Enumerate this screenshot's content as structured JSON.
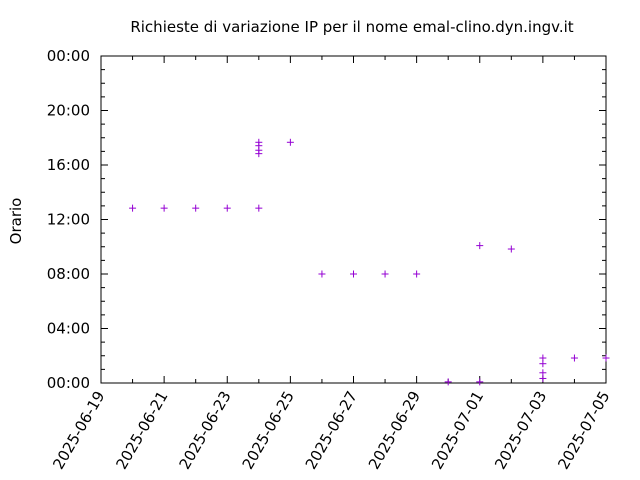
{
  "chart_data": {
    "type": "scatter",
    "title": "Richieste di variazione IP per il nome emal-clino.dyn.ingv.it",
    "xlabel": "",
    "ylabel": "Orario",
    "x_ticks": [
      "2025-06-19",
      "2025-06-21",
      "2025-06-23",
      "2025-06-25",
      "2025-06-27",
      "2025-06-29",
      "2025-07-01",
      "2025-07-03",
      "2025-07-05"
    ],
    "y_ticks": [
      "00:00",
      "04:00",
      "08:00",
      "12:00",
      "16:00",
      "20:00",
      "00:00"
    ],
    "xlim": [
      "2025-06-19",
      "2025-07-05"
    ],
    "ylim": [
      "00:00",
      "24:00"
    ],
    "grid": false,
    "marker": "+",
    "color": "#9400d3",
    "points": [
      {
        "date": "2025-06-20",
        "time": "12:50"
      },
      {
        "date": "2025-06-21",
        "time": "12:50"
      },
      {
        "date": "2025-06-22",
        "time": "12:50"
      },
      {
        "date": "2025-06-23",
        "time": "12:50"
      },
      {
        "date": "2025-06-24",
        "time": "12:50"
      },
      {
        "date": "2025-06-24",
        "time": "16:50"
      },
      {
        "date": "2025-06-24",
        "time": "17:05"
      },
      {
        "date": "2025-06-24",
        "time": "17:25"
      },
      {
        "date": "2025-06-24",
        "time": "17:40"
      },
      {
        "date": "2025-06-25",
        "time": "17:40"
      },
      {
        "date": "2025-06-26",
        "time": "08:00"
      },
      {
        "date": "2025-06-27",
        "time": "08:00"
      },
      {
        "date": "2025-06-28",
        "time": "08:00"
      },
      {
        "date": "2025-06-29",
        "time": "08:00"
      },
      {
        "date": "2025-06-30",
        "time": "00:05"
      },
      {
        "date": "2025-07-01",
        "time": "00:05"
      },
      {
        "date": "2025-07-01",
        "time": "10:05"
      },
      {
        "date": "2025-07-02",
        "time": "09:50"
      },
      {
        "date": "2025-07-03",
        "time": "00:20"
      },
      {
        "date": "2025-07-03",
        "time": "00:45"
      },
      {
        "date": "2025-07-03",
        "time": "01:25"
      },
      {
        "date": "2025-07-03",
        "time": "01:50"
      },
      {
        "date": "2025-07-04",
        "time": "01:50"
      },
      {
        "date": "2025-07-05",
        "time": "01:50"
      }
    ]
  }
}
